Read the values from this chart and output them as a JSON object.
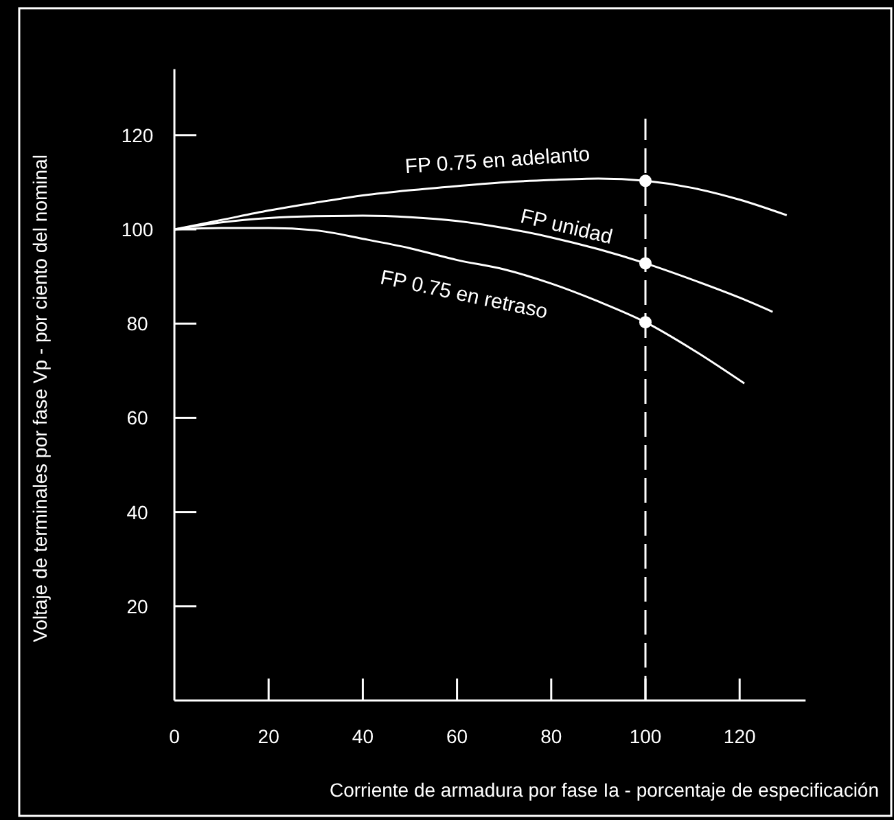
{
  "chart_data": {
    "type": "line",
    "xlabel": "Corriente de armadura por fase Ia - porcentaje de especificación",
    "ylabel": "Voltaje de terminales por fase Vp - por ciento del nominal",
    "xlim": [
      0,
      134
    ],
    "ylim": [
      0,
      134
    ],
    "xticks": [
      0,
      20,
      40,
      60,
      80,
      100,
      120
    ],
    "yticks": [
      20,
      40,
      60,
      80,
      100,
      120
    ],
    "series": [
      {
        "name": "FP 0.75 en adelanto",
        "color": "#ffffff",
        "x": [
          0,
          10,
          20,
          30,
          40,
          50,
          60,
          70,
          80,
          90,
          100,
          110,
          120,
          130
        ],
        "values": [
          100,
          102,
          104,
          105.7,
          107.2,
          108.3,
          109.2,
          110,
          110.5,
          110.8,
          110.3,
          108.8,
          106.3,
          103
        ]
      },
      {
        "name": "FP unidad",
        "color": "#ffffff",
        "x": [
          0,
          10,
          20,
          30,
          40,
          50,
          60,
          70,
          80,
          90,
          100,
          110,
          120,
          127
        ],
        "values": [
          100,
          101.5,
          102.4,
          102.8,
          102.9,
          102.6,
          101.8,
          100.3,
          98.3,
          95.8,
          92.8,
          89.3,
          85.5,
          82.5
        ]
      },
      {
        "name": "FP 0.75 en retraso",
        "color": "#ffffff",
        "x": [
          0,
          10,
          20,
          30,
          40,
          50,
          60,
          70,
          80,
          90,
          100,
          110,
          121
        ],
        "values": [
          100,
          100.3,
          100.3,
          99.8,
          98,
          96,
          93.5,
          91.5,
          88.5,
          84.7,
          80.3,
          74.5,
          67.3
        ]
      },
      {
        "type": "scatter",
        "color": "#ffffff",
        "marker": "circle",
        "x": [
          100,
          100,
          100
        ],
        "values": [
          110.3,
          92.8,
          80.3
        ]
      }
    ],
    "ref_lines": [
      {
        "axis": "x",
        "value": 100,
        "color": "#ffffff",
        "line_style": "dashed"
      }
    ],
    "grid": false,
    "marker": "none",
    "line_style": "solid"
  }
}
